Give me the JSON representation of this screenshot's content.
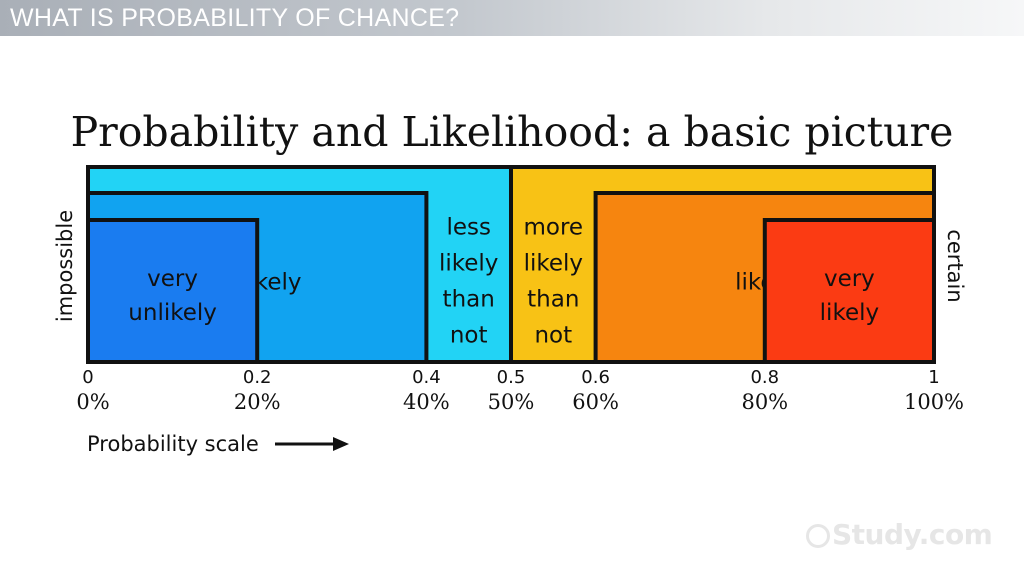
{
  "header": {
    "title": "WHAT IS PROBABILITY OF CHANCE?"
  },
  "diagram": {
    "title": "Probability and Likelihood: a basic picture",
    "left_label": "impossible",
    "right_label": "certain",
    "scale_caption": "Probability scale",
    "regions": [
      {
        "lines": [],
        "from": 0,
        "to": 0.5,
        "level": 0,
        "color": "#22d3f5"
      },
      {
        "lines": [],
        "from": 0.5,
        "to": 1,
        "level": 0,
        "color": "#f8c215"
      },
      {
        "lines": [
          "unlikely"
        ],
        "from": 0,
        "to": 0.4,
        "level": 1,
        "color": "#11a3f0"
      },
      {
        "lines": [
          "likely"
        ],
        "from": 0.6,
        "to": 1,
        "level": 1,
        "color": "#f6850f"
      },
      {
        "lines": [
          "very",
          "unlikely"
        ],
        "from": 0,
        "to": 0.2,
        "level": 2,
        "color": "#1a7cf0"
      },
      {
        "lines": [
          "very",
          "likely"
        ],
        "from": 0.8,
        "to": 1,
        "level": 2,
        "color": "#fb3b13"
      },
      {
        "lines": [
          "less",
          "likely",
          "than",
          "not"
        ],
        "from": 0.4,
        "to": 0.5,
        "level": 3,
        "color": ""
      },
      {
        "lines": [
          "more",
          "likely",
          "than",
          "not"
        ],
        "from": 0.5,
        "to": 0.6,
        "level": 3,
        "color": ""
      }
    ],
    "ticks": [
      {
        "value": 0,
        "decimal": "0",
        "percent": "0%"
      },
      {
        "value": 0.2,
        "decimal": "0.2",
        "percent": "20%"
      },
      {
        "value": 0.4,
        "decimal": "0.4",
        "percent": "40%"
      },
      {
        "value": 0.5,
        "decimal": "0.5",
        "percent": "50%"
      },
      {
        "value": 0.6,
        "decimal": "0.6",
        "percent": "60%"
      },
      {
        "value": 0.8,
        "decimal": "0.8",
        "percent": "80%"
      },
      {
        "value": 1,
        "decimal": "1",
        "percent": "100%"
      }
    ]
  },
  "watermark": {
    "text": "Study.com"
  }
}
